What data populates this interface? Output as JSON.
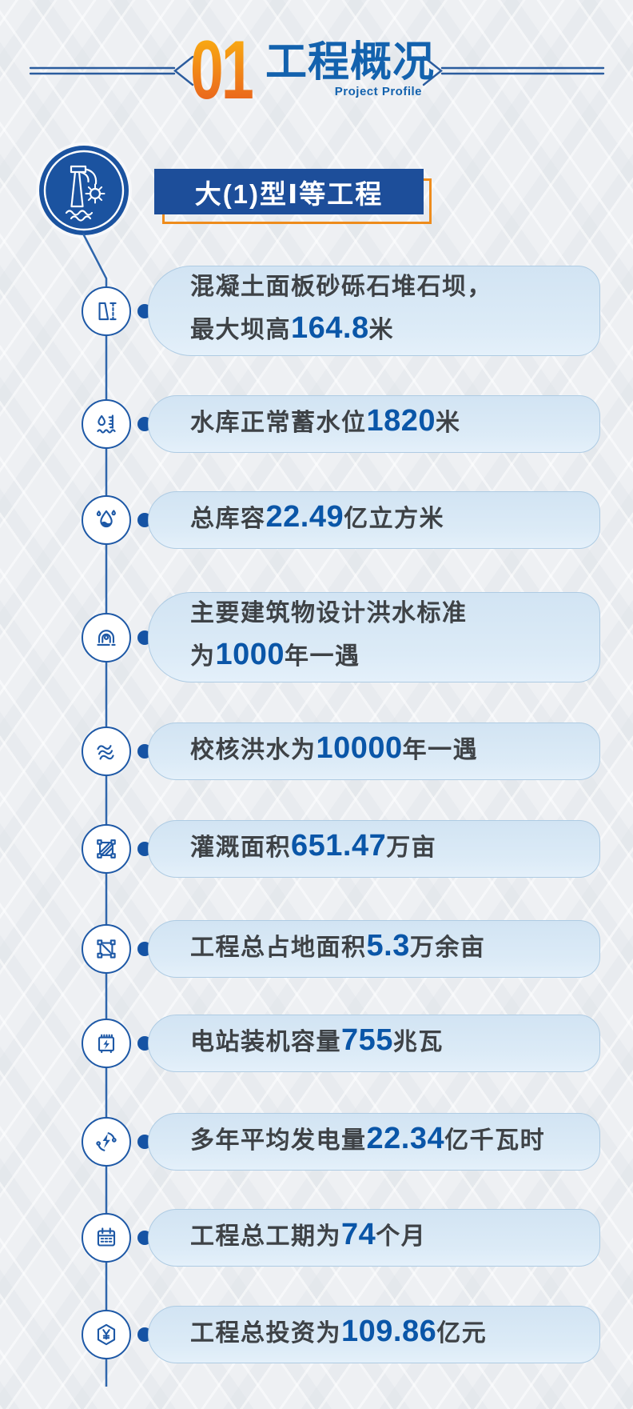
{
  "header": {
    "section_number": "01",
    "title": "工程概况",
    "subtitle": "Project Profile"
  },
  "hero": {
    "icon": "dam-spillway-icon",
    "badge": "大(1)型Ⅰ等工程"
  },
  "colors": {
    "primary_blue": "#1b53a0",
    "number_blue": "#0a56a8",
    "title_blue": "#1362ae",
    "banner_blue": "#1d4e9a",
    "orange": "#ee8c1c",
    "orange_gradient_start": "#f9ab12",
    "orange_gradient_end": "#e9631e",
    "card_bg": "#d7e8f5",
    "text_dark": "#3e4246",
    "background": "#eef0f3"
  },
  "facts": [
    {
      "icon": "dam-height-icon",
      "lines": [
        {
          "pre": "混凝土面板砂砾石堆石坝，",
          "num": "",
          "post": ""
        },
        {
          "pre": "最大坝高",
          "num": "164.8",
          "post": "米"
        }
      ]
    },
    {
      "icon": "water-level-icon",
      "lines": [
        {
          "pre": "水库正常蓄水位",
          "num": "1820",
          "post": "米"
        }
      ]
    },
    {
      "icon": "reservoir-capacity-icon",
      "lines": [
        {
          "pre": "总库容",
          "num": "22.49",
          "post": "亿立方米"
        }
      ]
    },
    {
      "icon": "flood-design-icon",
      "lines": [
        {
          "pre": "主要建筑物设计洪水标准",
          "num": "",
          "post": ""
        },
        {
          "pre": "为",
          "num": "1000",
          "post": "年一遇"
        }
      ]
    },
    {
      "icon": "flood-check-icon",
      "lines": [
        {
          "pre": "校核洪水为",
          "num": "10000",
          "post": "年一遇"
        }
      ]
    },
    {
      "icon": "irrigation-area-icon",
      "lines": [
        {
          "pre": "灌溉面积",
          "num": "651.47",
          "post": "万亩"
        }
      ]
    },
    {
      "icon": "land-area-icon",
      "lines": [
        {
          "pre": "工程总占地面积",
          "num": "5.3",
          "post": "万余亩"
        }
      ]
    },
    {
      "icon": "installed-capacity-icon",
      "lines": [
        {
          "pre": "电站装机容量",
          "num": "755",
          "post": "兆瓦"
        }
      ]
    },
    {
      "icon": "power-generation-icon",
      "lines": [
        {
          "pre": "多年平均发电量",
          "num": "22.34",
          "post": "亿千瓦时"
        }
      ]
    },
    {
      "icon": "project-duration-icon",
      "lines": [
        {
          "pre": "工程总工期为",
          "num": "74",
          "post": "个月"
        }
      ]
    },
    {
      "icon": "investment-icon",
      "lines": [
        {
          "pre": "工程总投资为",
          "num": "109.86",
          "post": "亿元"
        }
      ]
    }
  ]
}
